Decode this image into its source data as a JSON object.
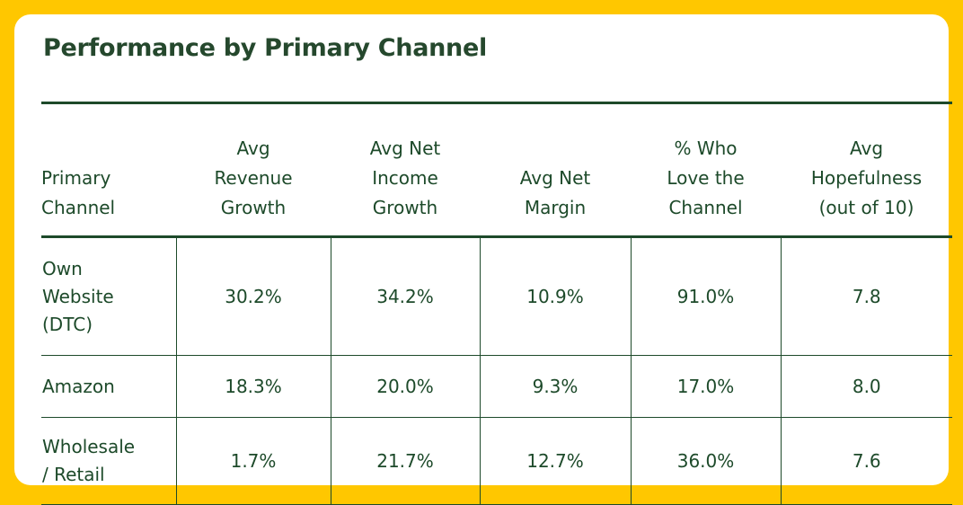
{
  "colors": {
    "background": "#FFC700",
    "text": "#1d4a2a",
    "card": "#ffffff"
  },
  "title": "Performance by Primary Channel",
  "chart_data": {
    "type": "table",
    "title": "Performance by Primary Channel",
    "columns": [
      "Primary Channel",
      "Avg Revenue Growth",
      "Avg Net Income Growth",
      "Avg Net Margin",
      "% Who Love the Channel",
      "Avg Hopefulness (out of 10)"
    ],
    "rows": [
      [
        "Own Website (DTC)",
        "30.2%",
        "34.2%",
        "10.9%",
        "91.0%",
        "7.8"
      ],
      [
        "Amazon",
        "18.3%",
        "20.0%",
        "9.3%",
        "17.0%",
        "8.0"
      ],
      [
        "Wholesale / Retail",
        "1.7%",
        "21.7%",
        "12.7%",
        "36.0%",
        "7.6"
      ]
    ]
  }
}
